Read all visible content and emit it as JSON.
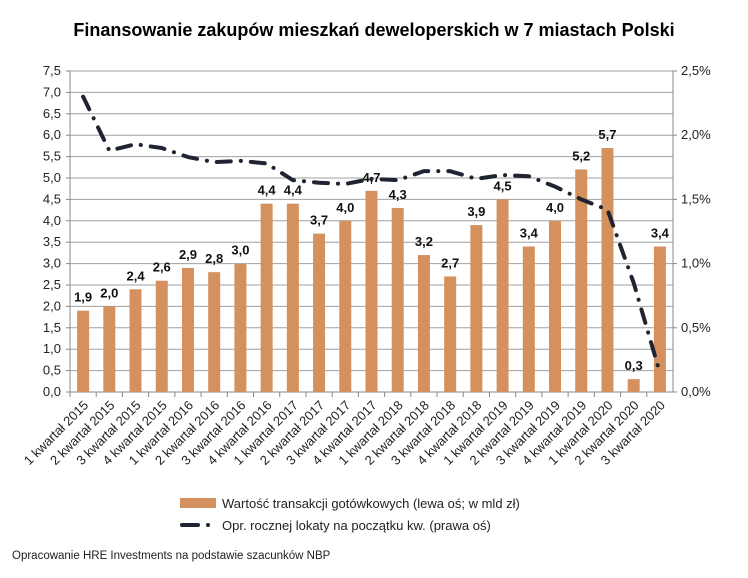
{
  "chart_data": {
    "type": "bar",
    "title": "Finansowanie zakupów mieszkań deweloperskich w 7 miastach Polski",
    "categories": [
      "1 kwartał 2015",
      "2 kwartał 2015",
      "3 kwartał 2015",
      "4 kwartał 2015",
      "1 kwartał 2016",
      "2 kwartał 2016",
      "3 kwartał 2016",
      "4 kwartał 2016",
      "1 kwartał 2017",
      "2 kwartał 2017",
      "3 kwartał 2017",
      "4 kwartał 2017",
      "1 kwartał 2018",
      "2 kwartał 2018",
      "3 kwartał 2018",
      "4 kwartał 2018",
      "1 kwartał 2019",
      "2 kwartał 2019",
      "3 kwartał 2019",
      "4 kwartał 2019",
      "1 kwartał 2020",
      "2 kwartał 2020",
      "3 kwartał 2020"
    ],
    "series": [
      {
        "name": "Wartość transakcji gotówkowych (lewa oś; w mld zł)",
        "type": "bar",
        "axis": "left",
        "color": "#D4915E",
        "values": [
          1.9,
          2.0,
          2.4,
          2.6,
          2.9,
          2.8,
          3.0,
          4.4,
          4.4,
          3.7,
          4.0,
          4.7,
          4.3,
          3.2,
          2.7,
          3.9,
          4.5,
          3.4,
          4.0,
          5.2,
          5.7,
          0.3,
          3.4
        ],
        "labels": [
          "1,9",
          "2,0",
          "2,4",
          "2,6",
          "2,9",
          "2,8",
          "3,0",
          "4,4",
          "4,4",
          "3,7",
          "4,0",
          "4,7",
          "4,3",
          "3,2",
          "2,7",
          "3,9",
          "4,5",
          "3,4",
          "4,0",
          "5,2",
          "5,7",
          "0,3",
          "3,4"
        ]
      },
      {
        "name": "Opr. rocznej lokaty na początku kw. (prawa oś)",
        "type": "line",
        "axis": "right",
        "color": "#1F2433",
        "style": "dash-dot",
        "values": [
          2.3,
          1.88,
          1.93,
          1.9,
          1.83,
          1.79,
          1.8,
          1.78,
          1.65,
          1.63,
          1.62,
          1.66,
          1.65,
          1.72,
          1.72,
          1.66,
          1.69,
          1.68,
          1.6,
          1.5,
          1.42,
          0.85,
          0.15
        ]
      }
    ],
    "ylim_left": [
      0,
      7.5
    ],
    "yticks_left": [
      "0,0",
      "0,5",
      "1,0",
      "1,5",
      "2,0",
      "2,5",
      "3,0",
      "3,5",
      "4,0",
      "4,5",
      "5,0",
      "5,5",
      "6,0",
      "6,5",
      "7,0",
      "7,5"
    ],
    "ylim_right": [
      0,
      2.5
    ],
    "yticks_right": [
      "0,0%",
      "0,5%",
      "1,0%",
      "1,5%",
      "2,0%",
      "2,5%"
    ],
    "grid": true,
    "legend_position": "bottom"
  },
  "footer": "Opracowanie HRE Investments na podstawie szacunków NBP"
}
